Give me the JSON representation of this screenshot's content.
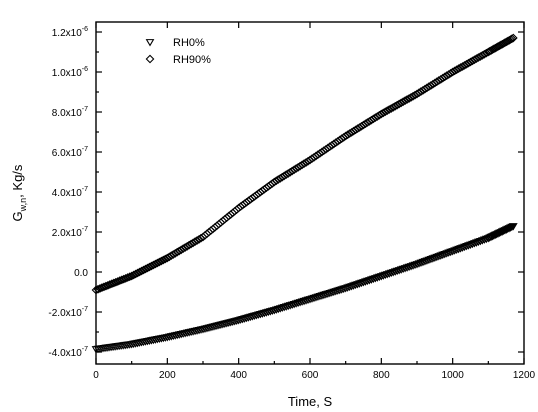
{
  "chart_data": {
    "type": "scatter",
    "title": "",
    "xlabel": "Time, S",
    "ylabel_main": "G",
    "ylabel_sub": "w,n",
    "ylabel_rest": ", Kg/s",
    "xlim": [
      0,
      1200
    ],
    "ylim": [
      -4.6e-07,
      1.25e-06
    ],
    "x_ticks": [
      0,
      200,
      400,
      600,
      800,
      1000,
      1200
    ],
    "x_tick_labels": [
      "0",
      "200",
      "400",
      "600",
      "800",
      "1000",
      "1200"
    ],
    "y_ticks": [
      -4e-07,
      -2e-07,
      0,
      2e-07,
      4e-07,
      6e-07,
      8e-07,
      1e-06,
      1.2e-06
    ],
    "y_tick_labels": [
      {
        "mantissa": "-4.0x10",
        "exp": "-7"
      },
      {
        "mantissa": "-2.0x10",
        "exp": "-7"
      },
      {
        "mantissa": "0.0",
        "exp": ""
      },
      {
        "mantissa": "2.0x10",
        "exp": "-7"
      },
      {
        "mantissa": "4.0x10",
        "exp": "-7"
      },
      {
        "mantissa": "6.0x10",
        "exp": "-7"
      },
      {
        "mantissa": "8.0x10",
        "exp": "-7"
      },
      {
        "mantissa": "1.0x10",
        "exp": "-6"
      },
      {
        "mantissa": "1.2x10",
        "exp": "-6"
      }
    ],
    "grid": false,
    "legend_position": "top-left",
    "series": [
      {
        "name": "RH0%",
        "marker": "triangle-down",
        "color": "#000000",
        "x": [
          0,
          100,
          200,
          300,
          400,
          500,
          600,
          700,
          800,
          900,
          1000,
          1100,
          1170
        ],
        "y": [
          -3.85e-07,
          -3.6e-07,
          -3.25e-07,
          -2.85e-07,
          -2.4e-07,
          -1.9e-07,
          -1.35e-07,
          -8e-08,
          -2e-08,
          4e-08,
          1.05e-07,
          1.7e-07,
          2.3e-07
        ]
      },
      {
        "name": "RH90%",
        "marker": "diamond",
        "color": "#000000",
        "x": [
          0,
          100,
          200,
          300,
          400,
          500,
          600,
          700,
          800,
          900,
          1000,
          1100,
          1170
        ],
        "y": [
          -9e-08,
          -2e-08,
          7e-08,
          1.75e-07,
          3.2e-07,
          4.5e-07,
          5.6e-07,
          6.8e-07,
          7.9e-07,
          8.9e-07,
          1e-06,
          1.1e-06,
          1.17e-06
        ]
      }
    ]
  }
}
